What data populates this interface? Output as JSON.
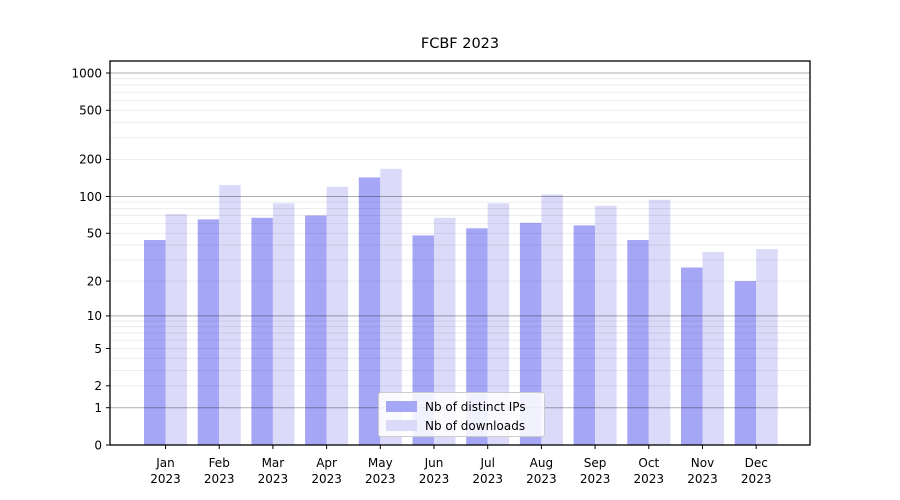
{
  "title": "FCBF 2023",
  "chart_data": {
    "type": "bar",
    "title": "FCBF 2023",
    "categories": [
      "Jan",
      "Feb",
      "Mar",
      "Apr",
      "May",
      "Jun",
      "Jul",
      "Aug",
      "Sep",
      "Oct",
      "Nov",
      "Dec"
    ],
    "year": "2023",
    "series": [
      {
        "name": "Nb of distinct IPs",
        "color": "#a6a6f7",
        "values": [
          44,
          65,
          67,
          70,
          143,
          48,
          55,
          61,
          58,
          44,
          26,
          20
        ]
      },
      {
        "name": "Nb of downloads",
        "color": "#dbdbf9",
        "values": [
          72,
          124,
          88,
          120,
          168,
          67,
          88,
          104,
          84,
          94,
          35,
          37
        ]
      }
    ],
    "yscale": "log1p",
    "yticks": [
      0,
      1,
      2,
      5,
      10,
      20,
      50,
      100,
      200,
      500,
      1000
    ],
    "major_gridlines": [
      1,
      10,
      100,
      1000
    ],
    "minor_gridlines": [
      2,
      3,
      4,
      5,
      6,
      7,
      8,
      9,
      20,
      30,
      40,
      50,
      60,
      70,
      80,
      90,
      200,
      300,
      400,
      500,
      600,
      700,
      800,
      900
    ],
    "ylim": [
      0,
      1200
    ],
    "xlabel": "",
    "ylabel": "",
    "grid": true,
    "legend_position": "lower center"
  },
  "colors": {
    "ips_bar": "#a6a6f7",
    "downloads_bar": "#dbdbf9",
    "major_grid": "rgba(0,0,0,0.32)",
    "minor_grid": "rgba(0,0,0,0.08)",
    "axis": "#000000"
  }
}
